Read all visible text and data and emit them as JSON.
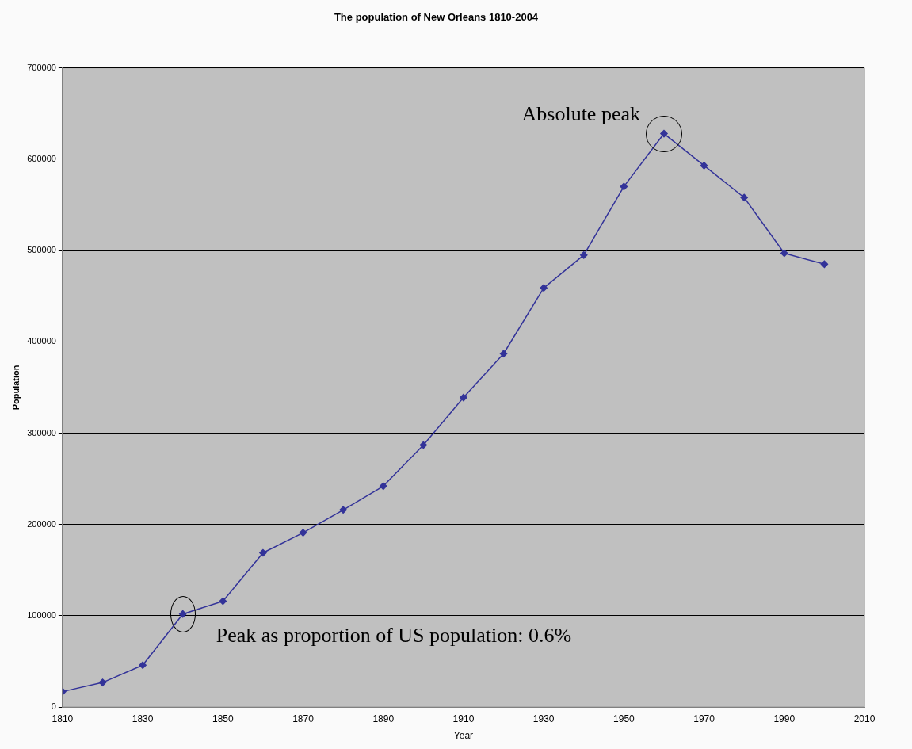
{
  "chart_data": {
    "type": "line",
    "title": "The population of New Orleans 1810-2004",
    "xlabel": "Year",
    "ylabel": "Population",
    "x": [
      1810,
      1820,
      1830,
      1840,
      1850,
      1860,
      1870,
      1880,
      1890,
      1900,
      1910,
      1920,
      1930,
      1940,
      1950,
      1960,
      1970,
      1980,
      1990,
      2000
    ],
    "series": [
      {
        "color": "#333399",
        "values": [
          17000,
          27000,
          46000,
          102000,
          116000,
          169000,
          191000,
          216000,
          242000,
          287000,
          339000,
          387000,
          459000,
          495000,
          570000,
          628000,
          593000,
          558000,
          497000,
          485000
        ]
      }
    ],
    "xlim": [
      1810,
      2010
    ],
    "xticks": [
      1810,
      1830,
      1850,
      1870,
      1890,
      1910,
      1930,
      1950,
      1970,
      1990,
      2010
    ],
    "ylim": [
      0,
      700000
    ],
    "yticks": [
      0,
      100000,
      200000,
      300000,
      400000,
      500000,
      600000,
      700000
    ],
    "grid": "y",
    "legend": false,
    "marker": "diamond",
    "line_style": "solid",
    "annotations": [
      {
        "text": "Absolute peak",
        "x": 1960,
        "y": 628000
      },
      {
        "text": "Peak as proportion of US population: 0.6%",
        "x": 1840,
        "y": 102000
      }
    ]
  }
}
